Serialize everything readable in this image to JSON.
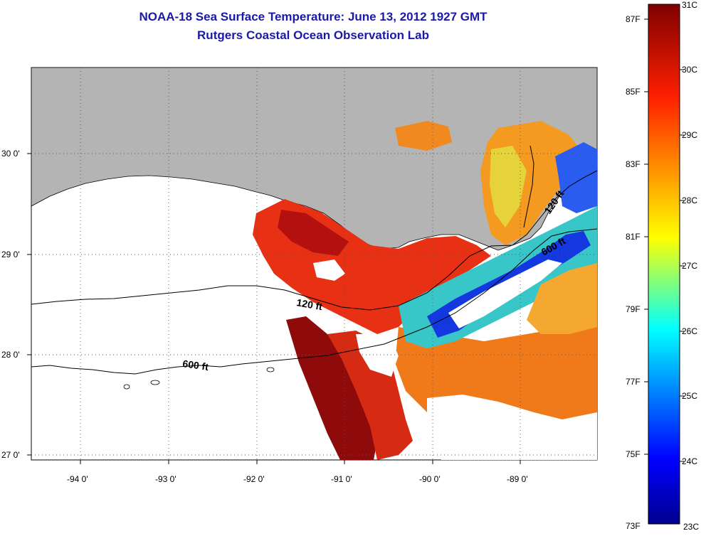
{
  "header": {
    "title_line1": "NOAA-18 Sea Surface Temperature:  June 13, 2012 1927 GMT",
    "title_line2": "Rutgers Coastal Ocean Observation Lab"
  },
  "map": {
    "lat_labels": [
      "30 0'",
      "29 0'",
      "28 0'",
      "27 0'"
    ],
    "lon_labels": [
      "-94 0'",
      "-93 0'",
      "-92 0'",
      "-91 0'",
      "-90 0'",
      "-89 0'"
    ],
    "contours": [
      {
        "label": "120 ft"
      },
      {
        "label": "600 ft"
      },
      {
        "label": "120 ft"
      },
      {
        "label": "600 ft"
      }
    ]
  },
  "colorbar": {
    "fahrenheit": [
      "87F",
      "85F",
      "83F",
      "81F",
      "79F",
      "77F",
      "75F",
      "73F"
    ],
    "celsius": [
      "31C",
      "30C",
      "29C",
      "28C",
      "27C",
      "26C",
      "25C",
      "24C",
      "23C"
    ]
  },
  "colors": {
    "title": "#1a1aa8",
    "land": "#b4b4b4",
    "colormap": [
      "#00008f",
      "#0000ff",
      "#00ffff",
      "#ffff00",
      "#ff0000",
      "#800000"
    ]
  }
}
